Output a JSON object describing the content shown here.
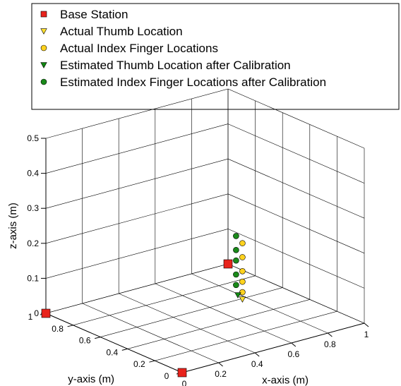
{
  "chart_data": {
    "type": "scatter",
    "projection": "3d",
    "title": "",
    "xlabel": "x-axis (m)",
    "ylabel": "y-axis (m)",
    "zlabel": "z-axis (m)",
    "xlim": [
      0,
      1
    ],
    "ylim": [
      0,
      1
    ],
    "zlim": [
      0,
      0.5
    ],
    "xticks": [
      "0",
      "0.2",
      "0.4",
      "0.6",
      "0.8",
      "1"
    ],
    "yticks": [
      "0",
      "0.2",
      "0.4",
      "0.6",
      "0.8",
      "1"
    ],
    "zticks": [
      "0",
      "0.1",
      "0.2",
      "0.3",
      "0.4",
      "0.5"
    ],
    "grid": true,
    "legend_position": "top",
    "series": [
      {
        "name": "Base Station",
        "marker": "square",
        "color": "#e8231c",
        "points": [
          {
            "x": 0,
            "y": 1,
            "z": 0
          },
          {
            "x": 0,
            "y": 0,
            "z": 0
          },
          {
            "x": 1,
            "y": 1,
            "z": 0
          }
        ]
      },
      {
        "name": "Actual Thumb Location",
        "marker": "triangle-down",
        "color": "#ffe030",
        "points": [
          {
            "x": 0.72,
            "y": 0.52,
            "z": 0.02
          }
        ]
      },
      {
        "name": "Actual Index Finger Locations",
        "marker": "circle",
        "color": "#ffd21e",
        "points": [
          {
            "x": 0.72,
            "y": 0.52,
            "z": 0.04
          },
          {
            "x": 0.72,
            "y": 0.52,
            "z": 0.07
          },
          {
            "x": 0.72,
            "y": 0.52,
            "z": 0.1
          },
          {
            "x": 0.72,
            "y": 0.52,
            "z": 0.14
          },
          {
            "x": 0.72,
            "y": 0.52,
            "z": 0.18
          }
        ]
      },
      {
        "name": "Estimated Thumb Location after Calibration",
        "marker": "triangle-down",
        "color": "#118811",
        "points": [
          {
            "x": 0.71,
            "y": 0.54,
            "z": 0.03
          }
        ]
      },
      {
        "name": "Estimated Index Finger Locations after Calibration",
        "marker": "circle",
        "color": "#1a8a1a",
        "points": [
          {
            "x": 0.7,
            "y": 0.54,
            "z": 0.06
          },
          {
            "x": 0.7,
            "y": 0.54,
            "z": 0.09
          },
          {
            "x": 0.7,
            "y": 0.54,
            "z": 0.13
          },
          {
            "x": 0.7,
            "y": 0.54,
            "z": 0.16
          },
          {
            "x": 0.7,
            "y": 0.54,
            "z": 0.2
          }
        ]
      }
    ]
  }
}
